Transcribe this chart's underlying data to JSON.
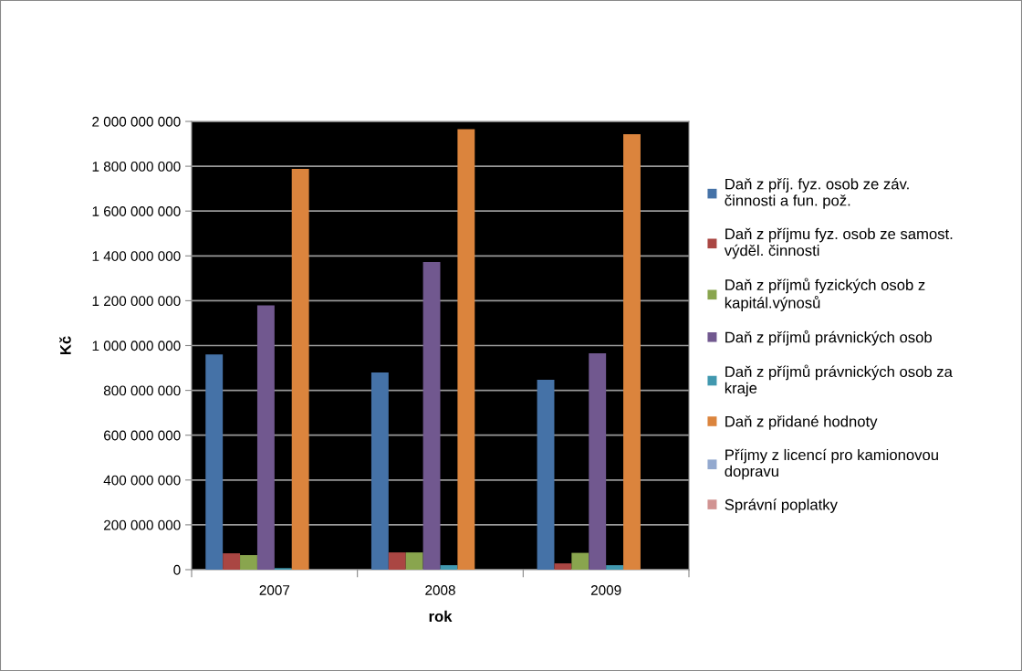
{
  "chart_data": {
    "type": "bar",
    "xlabel": "rok",
    "ylabel": "Kč",
    "categories": [
      "2007",
      "2008",
      "2009"
    ],
    "series": [
      {
        "name": "Daň z příj. fyz. osob ze záv. činnosti a fun. pož.",
        "color": "#4572a7",
        "values": [
          960000000,
          880000000,
          847000000
        ]
      },
      {
        "name": "Daň z příjmu fyz. osob ze samost. výděl. činnosti",
        "color": "#aa4643",
        "values": [
          73000000,
          77000000,
          28000000
        ]
      },
      {
        "name": "Daň z příjmů fyzických osob z kapitál.výnosů",
        "color": "#89a54e",
        "values": [
          65000000,
          77000000,
          75000000
        ]
      },
      {
        "name": "Daň z příjmů právnických osob",
        "color": "#71588f",
        "values": [
          1179000000,
          1373000000,
          965000000
        ]
      },
      {
        "name": "Daň z příjmů právnických osob za kraje",
        "color": "#4198af",
        "values": [
          7000000,
          20000000,
          20000000
        ]
      },
      {
        "name": "Daň z přidané hodnoty",
        "color": "#db843d",
        "values": [
          1788000000,
          1965000000,
          1943000000
        ]
      },
      {
        "name": "Příjmy z licencí pro kamionovou dopravu",
        "color": "#93a9cf",
        "values": [
          null,
          null,
          null
        ]
      },
      {
        "name": "Správní poplatky",
        "color": "#d19392",
        "values": [
          null,
          null,
          null
        ]
      }
    ],
    "ylim": [
      0,
      2000000000
    ],
    "yticks": [
      {
        "value": 0,
        "label": "0"
      },
      {
        "value": 200000000,
        "label": "200 000 000"
      },
      {
        "value": 400000000,
        "label": "400 000 000"
      },
      {
        "value": 600000000,
        "label": "600 000 000"
      },
      {
        "value": 800000000,
        "label": "800 000 000"
      },
      {
        "value": 1000000000,
        "label": "1 000 000 000"
      },
      {
        "value": 1200000000,
        "label": "1 200 000 000"
      },
      {
        "value": 1400000000,
        "label": "1 400 000 000"
      },
      {
        "value": 1600000000,
        "label": "1 600 000 000"
      },
      {
        "value": 1800000000,
        "label": "1 800 000 000"
      },
      {
        "value": 2000000000,
        "label": "2 000 000 000"
      }
    ],
    "grid": "y",
    "legend": "right"
  }
}
